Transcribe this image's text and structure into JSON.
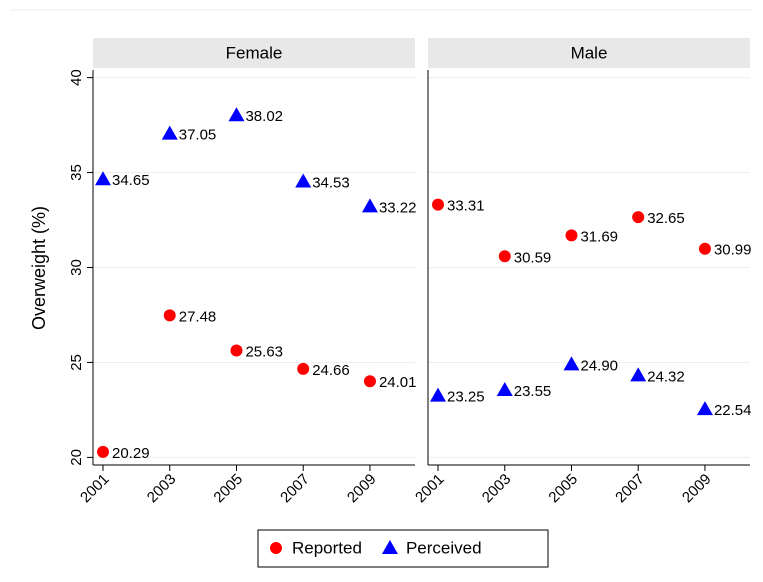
{
  "chart_data": {
    "type": "scatter",
    "ylabel": "Overweight (%)",
    "ylim": [
      19.6,
      40.4
    ],
    "yticks": [
      20,
      25,
      30,
      35,
      40
    ],
    "xlim": [
      2000.7,
      2010.35
    ],
    "xticks": [
      2001,
      2003,
      2005,
      2007,
      2009
    ],
    "x": [
      2001,
      2003,
      2005,
      2007,
      2009
    ],
    "grid": true,
    "series": [
      {
        "name": "Reported",
        "color": "#ff0000",
        "marker": "circle"
      },
      {
        "name": "Perceived",
        "color": "#0000ff",
        "marker": "triangle"
      }
    ],
    "panels": [
      {
        "title": "Female",
        "series": [
          {
            "values": [
              20.29,
              27.48,
              25.63,
              24.66,
              24.01
            ]
          },
          {
            "values": [
              34.65,
              37.05,
              38.02,
              34.53,
              33.22
            ]
          }
        ]
      },
      {
        "title": "Male",
        "series": [
          {
            "values": [
              33.31,
              30.59,
              31.69,
              32.65,
              30.99
            ]
          },
          {
            "values": [
              23.25,
              23.55,
              24.9,
              24.32,
              22.54
            ],
            "value_labels": [
              "23.25",
              "23.55",
              "24.90",
              "24.32",
              "22.54"
            ]
          }
        ]
      }
    ],
    "legend": "bottom"
  }
}
